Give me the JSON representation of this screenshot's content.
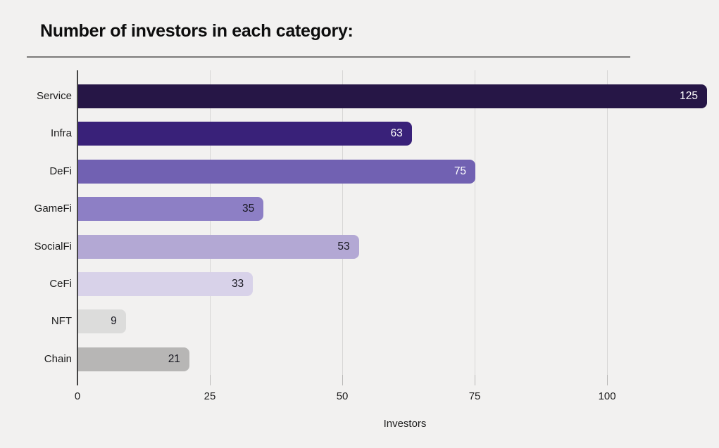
{
  "chart_data": {
    "type": "bar",
    "orientation": "horizontal",
    "title": "Number of investors in each category:",
    "xlabel": "Investors",
    "ylabel": "",
    "categories": [
      "Service",
      "Infra",
      "DeFi",
      "GameFi",
      "SocialFi",
      "CeFi",
      "NFT",
      "Chain"
    ],
    "values": [
      125,
      63,
      75,
      35,
      53,
      33,
      9,
      21
    ],
    "bar_colors": [
      "#261646",
      "#392179",
      "#7161b2",
      "#8d7fc5",
      "#b3a8d4",
      "#d8d2e9",
      "#dcdcdb",
      "#b7b6b5"
    ],
    "value_label_colors": [
      "#ffffff",
      "#ffffff",
      "#ffffff",
      "#16161f",
      "#16161f",
      "#16161f",
      "#16161f",
      "#16161f"
    ],
    "xticks": [
      0,
      25,
      50,
      75,
      100
    ],
    "xlim": [
      0,
      119
    ],
    "grid": true,
    "legend_position": "none",
    "background_color": "#f2f1f0",
    "gridline_color": "#d7d6d5",
    "axis_line_color": "#454545"
  }
}
